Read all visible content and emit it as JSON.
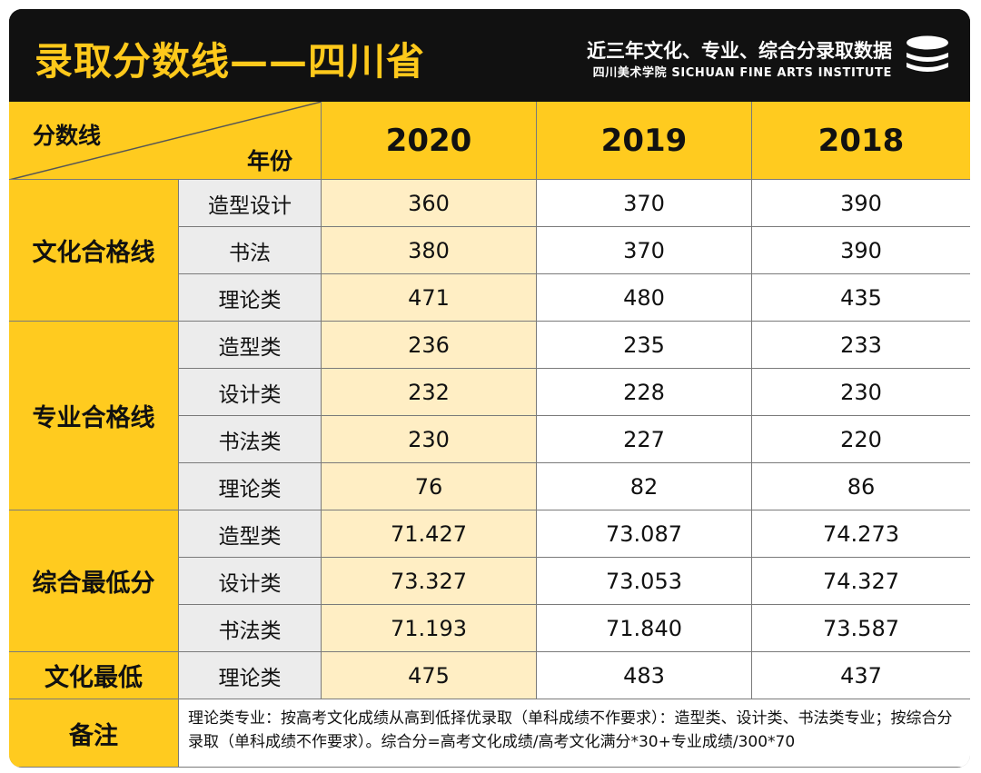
{
  "header": {
    "title": "录取分数线——四川省",
    "subtitle": "近三年文化、专业、综合分录取数据",
    "organization": "四川美术学院 SICHUAN FINE ARTS INSTITUTE",
    "logo_icon": "stacked-discs-icon"
  },
  "table": {
    "corner_label_score": "分数线",
    "corner_label_year": "年份",
    "years": [
      "2020",
      "2019",
      "2018"
    ],
    "groups": [
      {
        "name": "文化合格线",
        "rows": [
          {
            "label": "造型设计",
            "values": [
              "360",
              "370",
              "390"
            ]
          },
          {
            "label": "书法",
            "values": [
              "380",
              "370",
              "390"
            ]
          },
          {
            "label": "理论类",
            "values": [
              "471",
              "480",
              "435"
            ]
          }
        ]
      },
      {
        "name": "专业合格线",
        "rows": [
          {
            "label": "造型类",
            "values": [
              "236",
              "235",
              "233"
            ]
          },
          {
            "label": "设计类",
            "values": [
              "232",
              "228",
              "230"
            ]
          },
          {
            "label": "书法类",
            "values": [
              "230",
              "227",
              "220"
            ]
          },
          {
            "label": "理论类",
            "values": [
              "76",
              "82",
              "86"
            ]
          }
        ]
      },
      {
        "name": "综合最低分",
        "rows": [
          {
            "label": "造型类",
            "values": [
              "71.427",
              "73.087",
              "74.273"
            ]
          },
          {
            "label": "设计类",
            "values": [
              "73.327",
              "73.053",
              "74.327"
            ]
          },
          {
            "label": "书法类",
            "values": [
              "71.193",
              "71.840",
              "73.587"
            ]
          }
        ]
      },
      {
        "name": "文化最低",
        "rows": [
          {
            "label": "理论类",
            "values": [
              "475",
              "483",
              "437"
            ]
          }
        ]
      }
    ],
    "note_label": "备注",
    "note_text": "理论类专业：按高考文化成绩从高到低择优录取（单科成绩不作要求）：造型类、设计类、书法类专业；按综合分录取（单科成绩不作要求）。综合分=高考文化成绩/高考文化满分*30+专业成绩/300*70"
  },
  "colors": {
    "accent_yellow": "#ffcb1f",
    "highlight_column": "#ffeec4",
    "subcategory_gray": "#ececec",
    "header_black": "#111111"
  }
}
